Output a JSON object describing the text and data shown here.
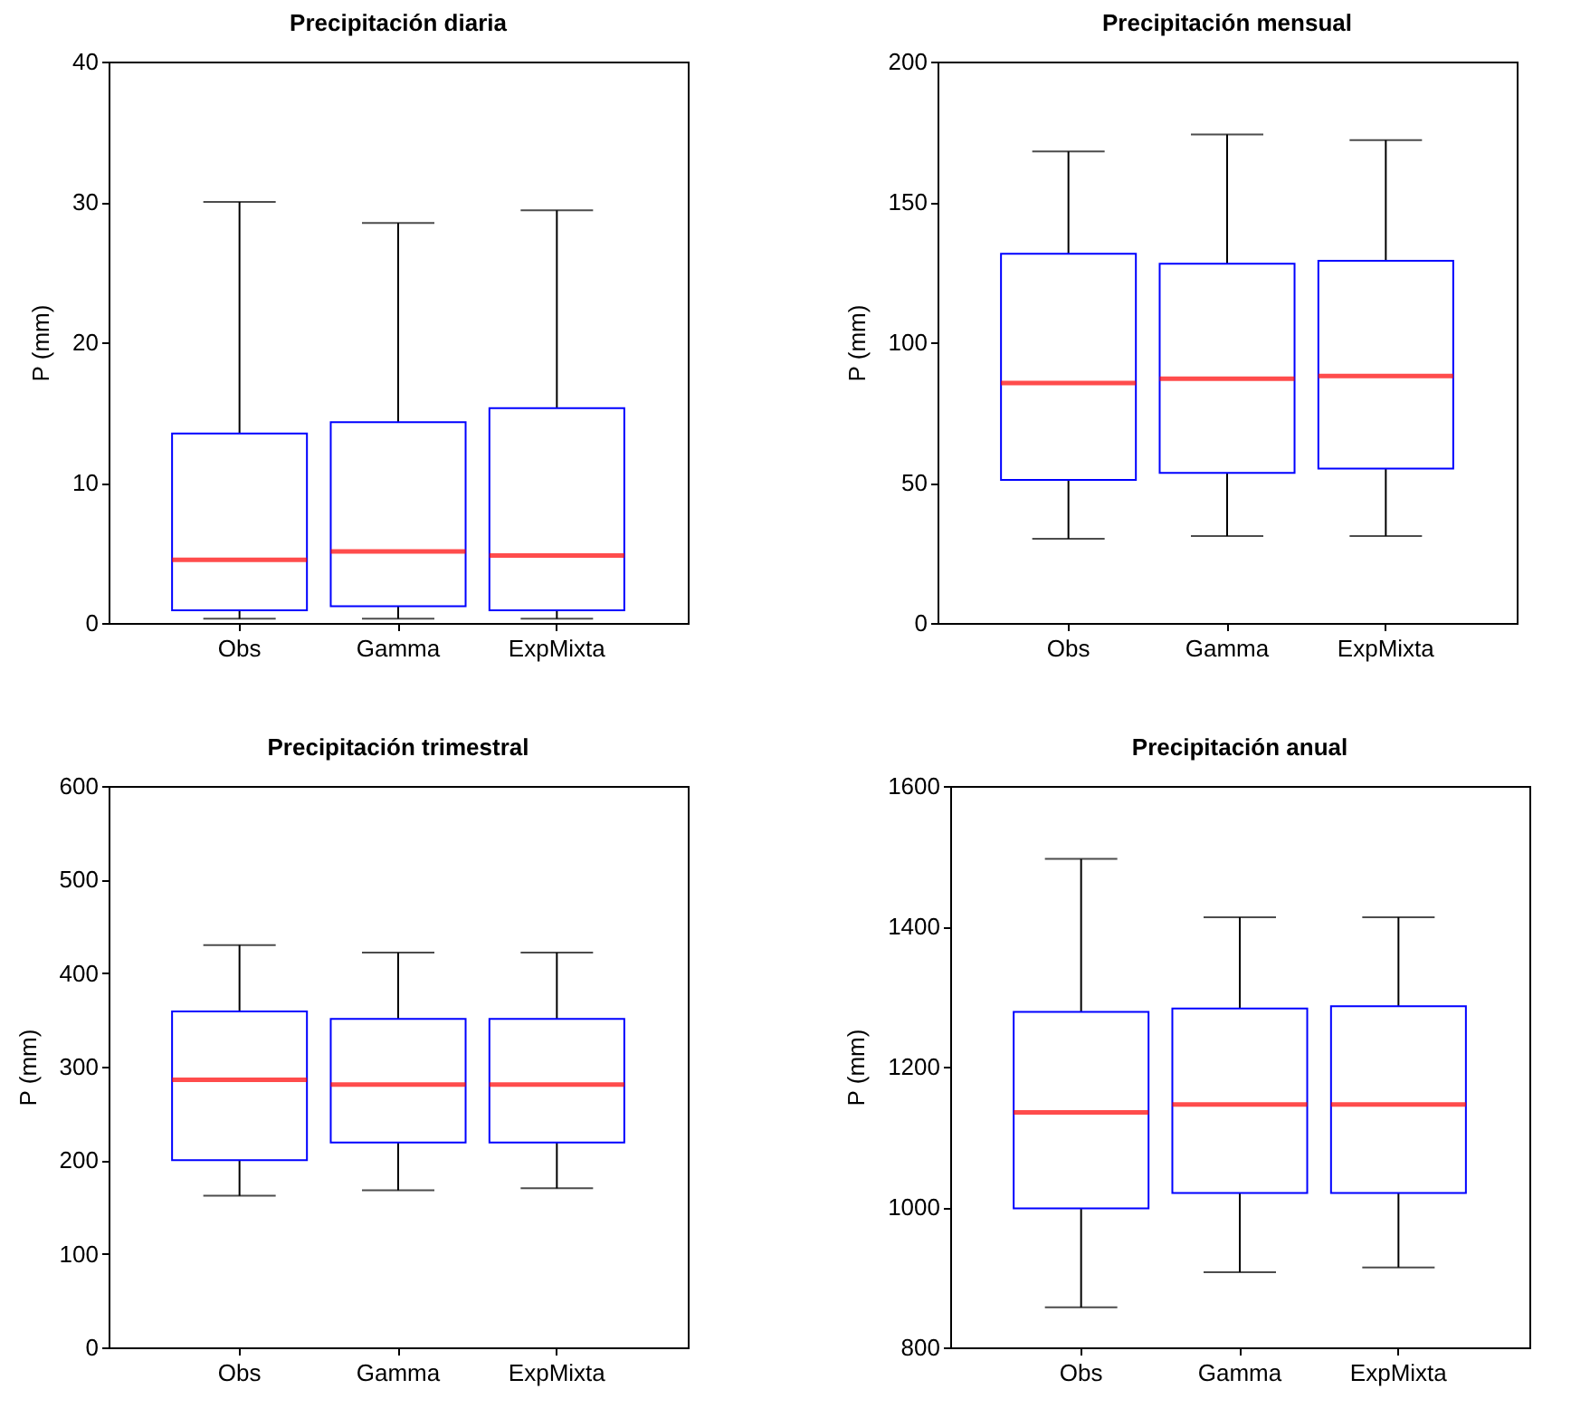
{
  "chart_data": [
    {
      "type": "box",
      "title": "Precipitación diaria",
      "ylabel": "P (mm)",
      "categories": [
        "Obs",
        "Gamma",
        "ExpMixta"
      ],
      "ylim": [
        0,
        40
      ],
      "yticks": [
        0,
        10,
        20,
        30,
        40
      ],
      "grid": false,
      "series": [
        {
          "color": "#0000ff",
          "boxes": [
            {
              "low": 0.3,
              "q1": 0.9,
              "median": 4.5,
              "q3": 13.5,
              "high": 30
            },
            {
              "low": 0.3,
              "q1": 1.2,
              "median": 5.1,
              "q3": 14.3,
              "high": 28.5
            },
            {
              "low": 0.3,
              "q1": 0.9,
              "median": 4.8,
              "q3": 15.3,
              "high": 29.4
            }
          ]
        }
      ]
    },
    {
      "type": "box",
      "title": "Precipitación mensual",
      "ylabel": "P (mm)",
      "categories": [
        "Obs",
        "Gamma",
        "ExpMixta"
      ],
      "ylim": [
        0,
        200
      ],
      "yticks": [
        0,
        50,
        100,
        150,
        200
      ],
      "grid": false,
      "series": [
        {
          "color": "#0000ff",
          "boxes": [
            {
              "low": 30,
              "q1": 51,
              "median": 85.5,
              "q3": 131.5,
              "high": 168
            },
            {
              "low": 31,
              "q1": 53.5,
              "median": 87,
              "q3": 128,
              "high": 174
            },
            {
              "low": 31,
              "q1": 55,
              "median": 88,
              "q3": 129,
              "high": 172
            }
          ]
        }
      ]
    },
    {
      "type": "box",
      "title": "Precipitación trimestral",
      "ylabel": "P (mm)",
      "categories": [
        "Obs",
        "Gamma",
        "ExpMixta"
      ],
      "ylim": [
        0,
        600
      ],
      "yticks": [
        0,
        100,
        200,
        300,
        400,
        500,
        600
      ],
      "grid": false,
      "series": [
        {
          "color": "#0000ff",
          "boxes": [
            {
              "low": 162,
              "q1": 200,
              "median": 286,
              "q3": 359,
              "high": 430
            },
            {
              "low": 168,
              "q1": 219,
              "median": 281,
              "q3": 351,
              "high": 422
            },
            {
              "low": 170,
              "q1": 219,
              "median": 281,
              "q3": 351,
              "high": 422
            }
          ]
        }
      ]
    },
    {
      "type": "box",
      "title": "Precipitación anual",
      "ylabel": "P (mm)",
      "categories": [
        "Obs",
        "Gamma",
        "ExpMixta"
      ],
      "ylim": [
        800,
        1600
      ],
      "yticks": [
        800,
        1000,
        1200,
        1400,
        1600
      ],
      "grid": false,
      "series": [
        {
          "color": "#0000ff",
          "boxes": [
            {
              "low": 857,
              "q1": 998,
              "median": 1135,
              "q3": 1278,
              "high": 1496
            },
            {
              "low": 907,
              "q1": 1020,
              "median": 1146,
              "q3": 1283,
              "high": 1413
            },
            {
              "low": 914,
              "q1": 1020,
              "median": 1146,
              "q3": 1286,
              "high": 1413
            }
          ]
        }
      ]
    }
  ]
}
